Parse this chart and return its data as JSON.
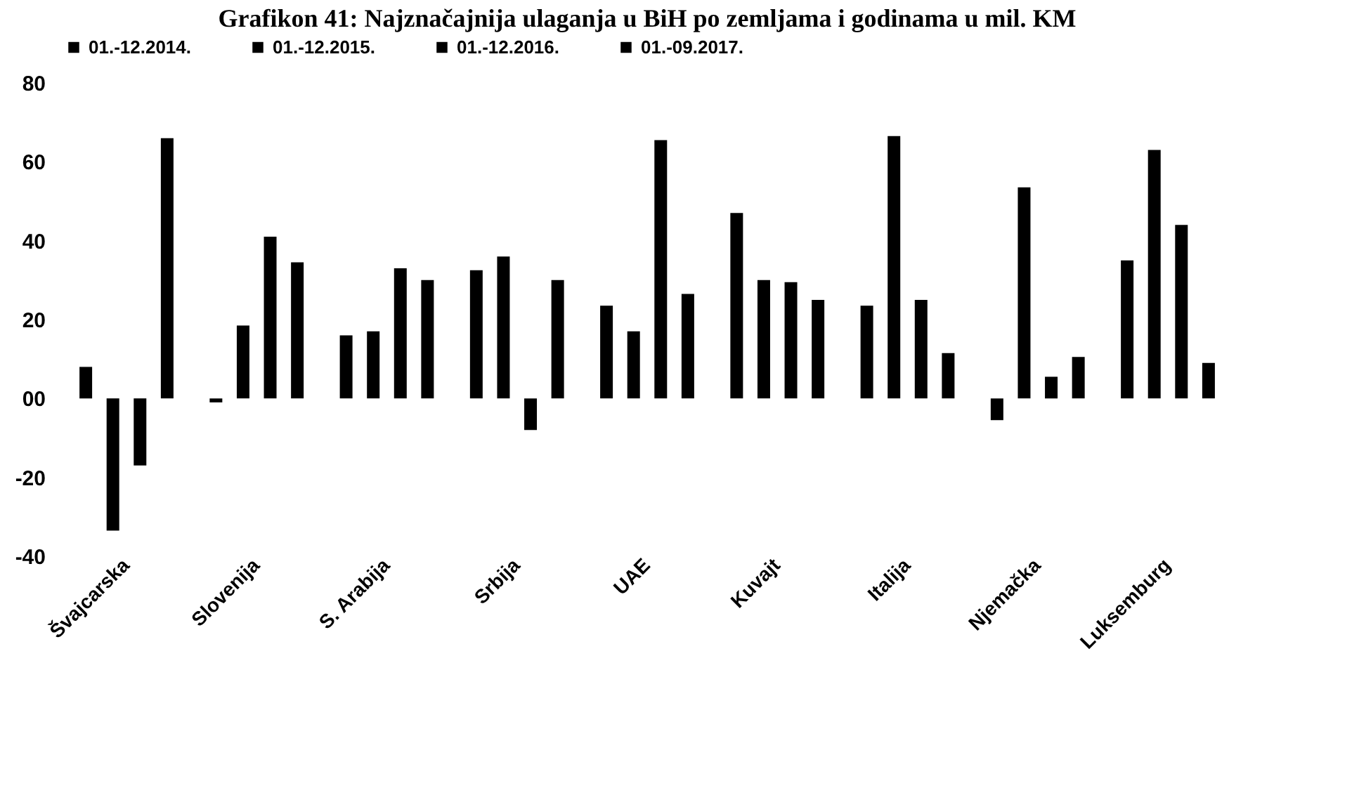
{
  "chart_data": {
    "type": "bar",
    "title": "Grafikon 41: Najznačajnija ulaganja u BiH po zemljama i godinama u mil. KM",
    "categories": [
      "Švajcarska",
      "Slovenija",
      "S. Arabija",
      "Srbija",
      "UAE",
      "Kuvajt",
      "Italija",
      "Njemačka",
      "Luksemburg"
    ],
    "series": [
      {
        "name": "01.-12.2014.",
        "color": "#000000",
        "values": [
          8,
          -1,
          16,
          32.5,
          23.5,
          47,
          23.5,
          -5.5,
          35
        ]
      },
      {
        "name": "01.-12.2015.",
        "color": "#000000",
        "values": [
          -33.5,
          18.5,
          17,
          36,
          17,
          30,
          66.5,
          53.5,
          63
        ]
      },
      {
        "name": "01.-12.2016.",
        "color": "#000000",
        "values": [
          -17,
          41,
          33,
          -8,
          65.5,
          29.5,
          25,
          5.5,
          44
        ]
      },
      {
        "name": "01.-09.2017.",
        "color": "#000000",
        "values": [
          66,
          34.5,
          30,
          30,
          26.5,
          25,
          11.5,
          10.5,
          9
        ]
      }
    ],
    "ylim": [
      -40,
      80
    ],
    "yticks": [
      -40,
      -20,
      {
        "value": 0,
        "label": "00"
      },
      20,
      40,
      60,
      80
    ],
    "grid": false,
    "legend": "top"
  }
}
